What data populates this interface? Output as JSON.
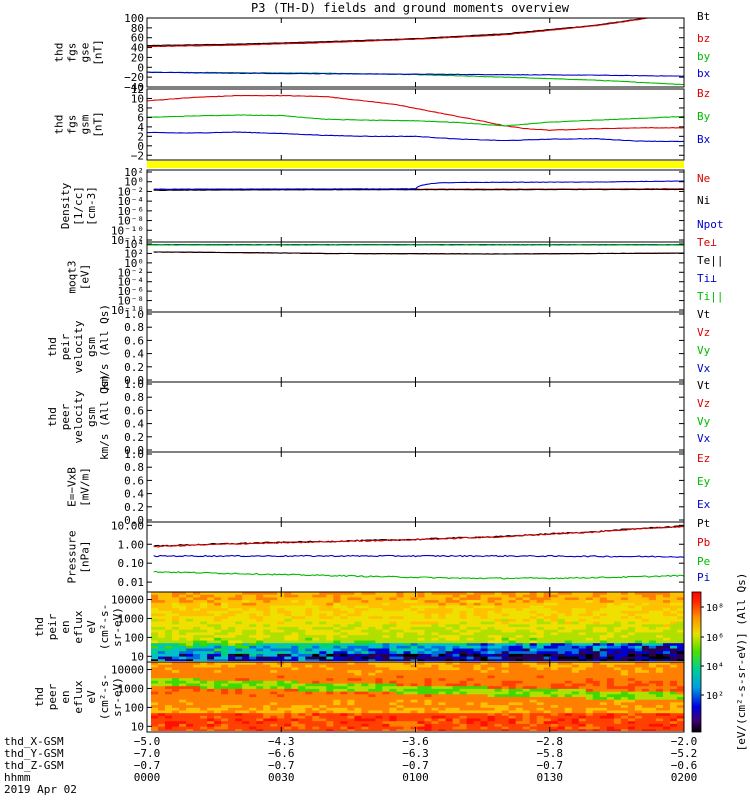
{
  "title": "P3 (TH-D) fields and ground moments overview",
  "chart_data": [
    {
      "type": "line",
      "panel_id": "fgs",
      "ylabel": [
        "thd",
        "fgs",
        "gse",
        "[nT]"
      ],
      "ylim": [
        -40,
        100
      ],
      "yticks": [
        100,
        80,
        60,
        40,
        20,
        0,
        -20,
        -40
      ],
      "ytick_labels": [
        "100",
        "80",
        "60",
        "40",
        "20",
        "0",
        "−20",
        "−40"
      ],
      "legend": [
        {
          "label": "Bt",
          "color": "#000000"
        },
        {
          "label": "bz",
          "color": "#dd0000"
        },
        {
          "label": "by",
          "color": "#00bb00"
        },
        {
          "label": "bx",
          "color": "#0000cc"
        }
      ],
      "series": [
        {
          "name": "Bt",
          "color": "#000000",
          "t": [
            0.05,
            20,
            40,
            60,
            80,
            100,
            110,
            120
          ],
          "values": [
            44,
            47,
            52,
            58,
            68,
            85,
            98,
            115
          ]
        },
        {
          "name": "bz",
          "color": "#dd0000",
          "t": [
            0.05,
            20,
            40,
            60,
            80,
            100,
            110,
            120
          ],
          "values": [
            42,
            45,
            50,
            57,
            66,
            84,
            97,
            114
          ]
        },
        {
          "name": "by",
          "color": "#00bb00",
          "t": [
            0,
            20,
            40,
            60,
            80,
            100,
            120
          ],
          "values": [
            -10,
            -11,
            -12,
            -15,
            -20,
            -26,
            -35
          ]
        },
        {
          "name": "bx",
          "color": "#0000cc",
          "t": [
            0,
            20,
            40,
            60,
            80,
            100,
            120
          ],
          "values": [
            -10,
            -12,
            -13,
            -14,
            -15,
            -16,
            -18
          ]
        }
      ]
    },
    {
      "type": "line",
      "panel_id": "fgs_gsm",
      "ylabel": [
        "thd",
        "fgs",
        "gsm",
        "[nT]"
      ],
      "ylim": [
        -3,
        12
      ],
      "yticks": [
        12,
        10,
        8,
        6,
        4,
        2,
        0,
        -2
      ],
      "ytick_labels": [
        "12",
        "10",
        "8",
        "6",
        "4",
        "2",
        "0",
        "−2"
      ],
      "legend": [
        {
          "label": "Bz",
          "color": "#dd0000"
        },
        {
          "label": "By",
          "color": "#00bb00"
        },
        {
          "label": "Bx",
          "color": "#0000cc"
        }
      ],
      "series": [
        {
          "name": "Bz",
          "color": "#dd0000",
          "t": [
            0,
            10,
            20,
            30,
            40,
            55,
            65,
            75,
            80,
            85,
            90,
            100,
            110,
            120
          ],
          "values": [
            9.5,
            10.2,
            10.6,
            10.6,
            10.4,
            8.8,
            7,
            5.2,
            4.2,
            3.6,
            3.3,
            3.6,
            3.8,
            3.8
          ]
        },
        {
          "name": "By",
          "color": "#00bb00",
          "t": [
            0,
            10,
            20,
            30,
            40,
            50,
            60,
            70,
            80,
            90,
            100,
            110,
            120
          ],
          "values": [
            6,
            6.3,
            6.5,
            6.4,
            5.6,
            5.4,
            5.3,
            4.9,
            4.2,
            5,
            5.4,
            5.8,
            6.2
          ]
        },
        {
          "name": "Bx",
          "color": "#0000cc",
          "t": [
            0,
            10,
            20,
            30,
            40,
            50,
            60,
            70,
            80,
            90,
            100,
            110,
            120
          ],
          "values": [
            2.8,
            2.7,
            2.9,
            2.6,
            2.2,
            2.0,
            2.0,
            1.4,
            1.1,
            1.4,
            1.5,
            1.0,
            0.9
          ]
        }
      ]
    },
    {
      "type": "line",
      "panel_id": "density",
      "ylabel": [
        "Density",
        "[1/cc]",
        "[cm-3]"
      ],
      "scale": "log",
      "ylim": [
        1e-12,
        1000
      ],
      "ytick_labels": [
        "10²",
        "10⁰",
        "10⁻²",
        "10⁻⁴",
        "10⁻⁶",
        "10⁻⁸",
        "10⁻¹⁰",
        "10⁻¹²"
      ],
      "legend": [
        {
          "label": "Ne",
          "color": "#dd0000"
        },
        {
          "label": "Ni",
          "color": "#000000"
        },
        {
          "label": "Npot",
          "color": "#0000cc"
        }
      ],
      "series": [
        {
          "name": "Ne",
          "color": "#dd0000",
          "t": [
            1.5,
            40,
            80,
            120
          ],
          "values": [
            0.08,
            0.1,
            0.1,
            0.12
          ]
        },
        {
          "name": "Ni",
          "color": "#000000",
          "t": [
            1.5,
            40,
            80,
            120
          ],
          "values": [
            0.06,
            0.08,
            0.08,
            0.09
          ]
        },
        {
          "name": "Npot",
          "color": "#0000cc",
          "t": [
            1.5,
            60,
            65,
            70,
            90,
            100,
            110,
            120
          ],
          "values": [
            0.1,
            0.12,
            2,
            2.5,
            3,
            3,
            4,
            5
          ]
        }
      ]
    },
    {
      "type": "line",
      "panel_id": "temperature",
      "ylabel": [
        "moqt3",
        "[eV]"
      ],
      "scale": "log",
      "ylim": [
        1e-10,
        10000
      ],
      "ytick_labels": [
        "10⁴",
        "10²",
        "10⁰",
        "10⁻²",
        "10⁻⁴",
        "10⁻⁶",
        "10⁻⁸",
        "10⁻¹⁰"
      ],
      "legend": [
        {
          "label": "Te⊥",
          "color": "#dd0000"
        },
        {
          "label": "Te||",
          "color": "#000000"
        },
        {
          "label": "Ti⊥",
          "color": "#0000cc"
        },
        {
          "label": "Ti||",
          "color": "#00bb00"
        }
      ],
      "series": [
        {
          "name": "Te⊥",
          "color": "#dd0000",
          "t": [
            1.5,
            40,
            80,
            120
          ],
          "values": [
            100,
            50,
            40,
            60
          ]
        },
        {
          "name": "Te||",
          "color": "#000000",
          "t": [
            1.5,
            40,
            80,
            120
          ],
          "values": [
            100,
            50,
            40,
            60
          ]
        },
        {
          "name": "Ti⊥",
          "color": "#0000cc",
          "t": [
            0,
            120
          ],
          "values": [
            3000,
            3000
          ]
        },
        {
          "name": "Ti||",
          "color": "#00bb00",
          "t": [
            0,
            120
          ],
          "values": [
            2500,
            2500
          ]
        }
      ]
    },
    {
      "type": "line",
      "panel_id": "peir_velocity",
      "ylabel": [
        "thd",
        "peir",
        "velocity",
        "gsm",
        "km/s (All Qs)"
      ],
      "ylim": [
        0,
        1
      ],
      "ytick_labels": [
        "1.0",
        "0.8",
        "0.6",
        "0.4",
        "0.2",
        "0.0"
      ],
      "legend": [
        {
          "label": "Vt",
          "color": "#000000"
        },
        {
          "label": "Vz",
          "color": "#dd0000"
        },
        {
          "label": "Vy",
          "color": "#00bb00"
        },
        {
          "label": "Vx",
          "color": "#0000cc"
        }
      ],
      "series": []
    },
    {
      "type": "line",
      "panel_id": "peer_velocity",
      "ylabel": [
        "thd",
        "peer",
        "velocity",
        "gsm",
        "km/s (All Qs)"
      ],
      "ylim": [
        0,
        1
      ],
      "ytick_labels": [
        "1.0",
        "0.8",
        "0.6",
        "0.4",
        "0.2",
        "0.0"
      ],
      "legend": [
        {
          "label": "Vt",
          "color": "#000000"
        },
        {
          "label": "Vz",
          "color": "#dd0000"
        },
        {
          "label": "Vy",
          "color": "#00bb00"
        },
        {
          "label": "Vx",
          "color": "#0000cc"
        }
      ],
      "series": []
    },
    {
      "type": "line",
      "panel_id": "efield",
      "ylabel": [
        "E=−VxB",
        "[mV/m]"
      ],
      "ylim": [
        0,
        1
      ],
      "ytick_labels": [
        "1.0",
        "0.8",
        "0.6",
        "0.4",
        "0.2",
        "0.0"
      ],
      "legend": [
        {
          "label": "Ez",
          "color": "#dd0000"
        },
        {
          "label": "Ey",
          "color": "#00bb00"
        },
        {
          "label": "Ex",
          "color": "#0000cc"
        }
      ],
      "series": []
    },
    {
      "type": "line",
      "panel_id": "pressure",
      "ylabel": [
        "Pressure",
        "[nPa]"
      ],
      "scale": "log",
      "ylim": [
        0.003,
        15
      ],
      "yticks": [
        10,
        1,
        0.1,
        0.01
      ],
      "ytick_labels": [
        "10.00",
        "1.00",
        "0.10",
        "0.01"
      ],
      "legend": [
        {
          "label": "Pt",
          "color": "#000000"
        },
        {
          "label": "Pb",
          "color": "#dd0000"
        },
        {
          "label": "Pe",
          "color": "#00bb00"
        },
        {
          "label": "Pi",
          "color": "#0000cc"
        }
      ],
      "series": [
        {
          "name": "Pt",
          "color": "#000000",
          "t": [
            1.5,
            20,
            40,
            60,
            80,
            100,
            120
          ],
          "values": [
            0.8,
            1.1,
            1.4,
            1.8,
            2.6,
            4.5,
            9
          ]
        },
        {
          "name": "Pb",
          "color": "#dd0000",
          "t": [
            1.5,
            20,
            40,
            60,
            80,
            100,
            120
          ],
          "values": [
            0.75,
            1.05,
            1.35,
            1.75,
            2.5,
            4.4,
            8.8
          ]
        },
        {
          "name": "Pe",
          "color": "#00bb00",
          "t": [
            1.5,
            15,
            30,
            50,
            70,
            90,
            105,
            120
          ],
          "values": [
            0.035,
            0.03,
            0.025,
            0.02,
            0.016,
            0.016,
            0.018,
            0.022
          ]
        },
        {
          "name": "Pi",
          "color": "#0000cc",
          "t": [
            1.5,
            40,
            80,
            120
          ],
          "values": [
            0.24,
            0.24,
            0.24,
            0.22
          ]
        }
      ]
    },
    {
      "type": "heatmap",
      "panel_id": "peir_spectrogram",
      "ylabel": [
        "thd",
        "peir",
        "en",
        "eflux",
        "eV",
        "(cm²-s-",
        "sr-eV)"
      ],
      "scale": "log",
      "ylim": [
        5,
        25000
      ],
      "yticks": [
        10000,
        1000,
        100,
        10
      ],
      "ytick_labels": [
        "10000",
        "1000",
        "100",
        "10"
      ]
    },
    {
      "type": "heatmap",
      "panel_id": "peer_spectrogram",
      "ylabel": [
        "thd",
        "peer",
        "en",
        "eflux",
        "eV",
        "(cm²-s-",
        "sr-eV)"
      ],
      "scale": "log",
      "ylim": [
        5,
        25000
      ],
      "yticks": [
        10000,
        1000,
        100,
        10
      ],
      "ytick_labels": [
        "10000",
        "1000",
        "100",
        "10"
      ]
    }
  ],
  "colorbar": {
    "tick_labels": [
      "10⁸",
      "10⁶",
      "10⁴",
      "10²"
    ],
    "label": "[eV/(cm²-s-sr-eV)] (All Qs)"
  },
  "time_axis": {
    "rows": [
      {
        "label": "thd_X-GSM",
        "values": [
          "−5.0",
          "−4.3",
          "−3.6",
          "−2.8",
          "−2.0"
        ]
      },
      {
        "label": "thd_Y-GSM",
        "values": [
          "−7.0",
          "−6.6",
          "−6.3",
          "−5.8",
          "−5.2"
        ]
      },
      {
        "label": "thd_Z-GSM",
        "values": [
          "−0.7",
          "−0.7",
          "−0.7",
          "−0.7",
          "−0.6"
        ]
      },
      {
        "label": "hhmm",
        "values": [
          "0000",
          "0030",
          "0100",
          "0130",
          "0200"
        ]
      }
    ],
    "date": "2019 Apr 02",
    "tick_minutes": [
      0,
      30,
      60,
      90,
      120
    ]
  }
}
